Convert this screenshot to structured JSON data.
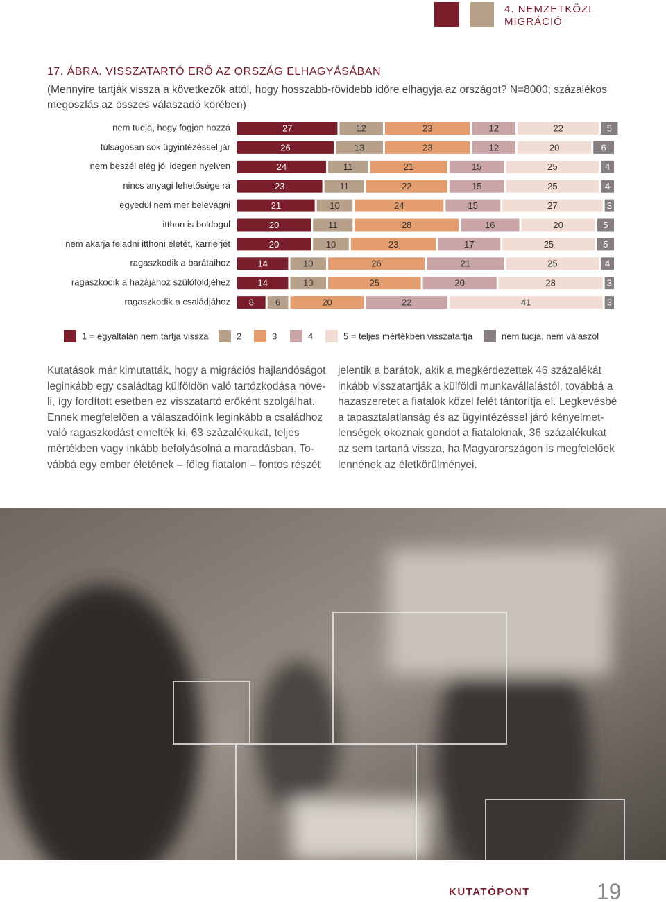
{
  "header": {
    "section": [
      "4. NEMZETKÖZI",
      "MIGRÁCIÓ"
    ]
  },
  "chart_data": {
    "type": "stacked-bar-horizontal",
    "title": "17. ÁBRA. VISSZATARTÓ ERŐ AZ ORSZÁG ELHAGYÁSÁBAN",
    "subtitle": [
      "(Mennyire tartják vissza a következők attól, hogy hosszabb-rövidebb időre elhagyja az országot? N=8000; százalékos",
      "megoszlás az összes válaszadó körében)"
    ],
    "categories": [
      "nem tudja, hogy fogjon hozzá",
      "túlságosan sok ügyintézéssel jár",
      "nem beszél elég jól idegen nyelven",
      "nincs anyagi lehetősége rá",
      "egyedül nem mer belevágni",
      "itthon is boldogul",
      "nem akarja feladni itthoni életét, karrierjét",
      "ragaszkodik a barátaihoz",
      "ragaszkodik a hazájához szülőföldjéhez",
      "ragaszkodik a családjához"
    ],
    "series": [
      {
        "name": "1 = egyáltalán nem tartja vissza",
        "color": "#7b1e2c",
        "values": [
          27,
          26,
          24,
          23,
          21,
          20,
          20,
          14,
          14,
          8
        ]
      },
      {
        "name": "2",
        "color": "#b7a08a",
        "values": [
          12,
          13,
          11,
          11,
          10,
          11,
          10,
          10,
          10,
          6
        ]
      },
      {
        "name": "3",
        "color": "#e39d6e",
        "values": [
          23,
          23,
          21,
          22,
          24,
          28,
          23,
          26,
          25,
          20
        ]
      },
      {
        "name": "4",
        "color": "#c9a5a8",
        "values": [
          12,
          12,
          15,
          15,
          15,
          16,
          17,
          21,
          20,
          22
        ]
      },
      {
        "name": "5 = teljes mértékben visszatartja",
        "color": "#f1ddd3",
        "values": [
          22,
          20,
          25,
          25,
          27,
          20,
          25,
          25,
          28,
          41
        ]
      },
      {
        "name": "nem tudja, nem válaszol",
        "color": "#877f7f",
        "values": [
          5,
          6,
          4,
          4,
          3,
          5,
          5,
          4,
          3,
          3
        ]
      }
    ]
  },
  "text": {
    "left_column": [
      "Kutatások már kimutatták, hogy a migrációs hajlandóságot",
      "leginkább egy családtag külföldön való tartózkodása növe-",
      "li, így fordított esetben ez visszatartó erőként szolgálhat.",
      "Ennek megfelelően a válaszadóink leginkább a családhoz",
      "való ragaszkodást emelték ki, 63 százalékukat, teljes",
      "mértékben vagy inkább befolyásolná a maradásban. To-",
      "vábbá egy ember életének – főleg fiatalon – fontos részét"
    ],
    "right_column": [
      "jelentik a barátok, akik a megkérdezettek 46 százalékát",
      "inkább visszatartják a külföldi munkavállalástól, továbbá a",
      "hazaszeretet a fiatalok közel felét tántorítja el. Legkevésbé",
      "a tapasztalatlanság és az ügyintézéssel járó kényelmet-",
      "lenségek okoznak gondot a fiataloknak, 36 százalékukat",
      "az sem tartaná vissza, ha Magyarországon is megfelelőek",
      "lennének az életkörülményei."
    ]
  },
  "footer": {
    "brand": "KUTATÓPONT",
    "page": "19"
  }
}
